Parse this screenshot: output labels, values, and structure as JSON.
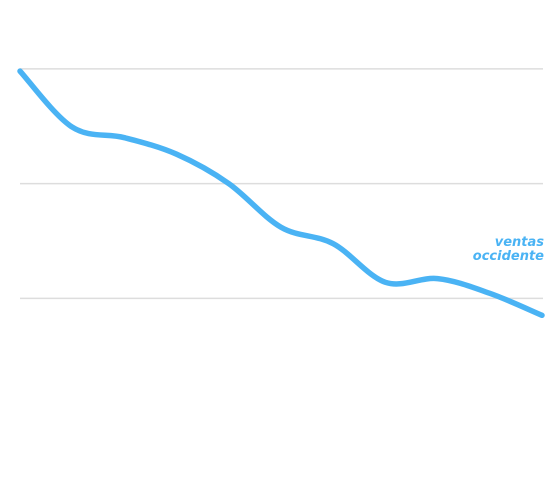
{
  "chart_data": {
    "type": "line",
    "title": "",
    "xlabel": "",
    "ylabel": "",
    "grid": true,
    "legend": "none",
    "ylim": [
      0,
      100
    ],
    "gridline_values": [
      35,
      60,
      85
    ],
    "x": [
      0,
      1,
      2,
      3,
      4,
      5,
      6,
      7,
      8,
      9,
      10
    ],
    "series": [
      {
        "name": "ventas occidente",
        "label_lines": [
          "ventas",
          "occidente"
        ],
        "color": "#4ab3f4",
        "values": [
          84.5,
          72.3,
          70.0,
          66.4,
          60.0,
          50.5,
          46.9,
          38.5,
          39.3,
          36.1,
          31.3
        ]
      }
    ]
  }
}
